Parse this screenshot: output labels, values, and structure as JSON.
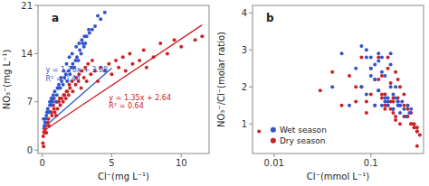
{
  "chart_data": [
    {
      "type": "scatter",
      "title": "a",
      "x_label": "Cl⁻(mg L⁻¹)",
      "y_label": "NO₃⁻(mg L⁻¹)",
      "xlim": [
        -0.3,
        12
      ],
      "ylim": [
        -0.5,
        21
      ],
      "xticks": [
        0,
        5,
        10
      ],
      "yticks": [
        0,
        7,
        14,
        21
      ],
      "series": [
        {
          "type": "scatter",
          "color": "#3355cc",
          "x": [
            0.1,
            0.15,
            0.2,
            0.25,
            0.3,
            0.35,
            0.4,
            0.5,
            0.55,
            0.6,
            0.65,
            0.7,
            0.75,
            0.8,
            0.85,
            0.9,
            1.0,
            1.05,
            1.1,
            1.2,
            1.3,
            1.4,
            1.5,
            1.6,
            1.7,
            1.8,
            1.9,
            2.0,
            2.1,
            2.2,
            2.3,
            2.4,
            2.5,
            2.6,
            2.7,
            2.8,
            2.9,
            3.0,
            3.1,
            3.2,
            3.4,
            3.6,
            3.8,
            4.0,
            4.2,
            4.5,
            0.45,
            0.55,
            0.65,
            1.15,
            1.35,
            1.55,
            1.75,
            1.95,
            2.15,
            2.45,
            2.65,
            2.85,
            3.05,
            3.35
          ],
          "values": [
            4.5,
            3.5,
            4.0,
            4.5,
            5.0,
            5.5,
            6.0,
            5.5,
            6.5,
            7.0,
            6.5,
            7.5,
            7.0,
            8.0,
            7.5,
            8.5,
            7.0,
            8.0,
            9.0,
            9.5,
            9.0,
            10.0,
            9.5,
            10.5,
            11.0,
            10.0,
            11.5,
            11.0,
            12.0,
            12.5,
            12.0,
            13.0,
            13.5,
            13.0,
            14.5,
            14.0,
            15.5,
            15.0,
            15.5,
            16.5,
            17.0,
            17.5,
            18.0,
            19.5,
            19.0,
            20.0,
            5.5,
            7.0,
            7.5,
            9.0,
            10.5,
            11.5,
            12.5,
            13.5,
            14.0,
            15.0,
            15.5,
            16.0,
            16.5,
            17.5
          ]
        },
        {
          "type": "scatter",
          "color": "#cc2222",
          "x": [
            0.05,
            0.1,
            0.15,
            0.2,
            0.3,
            0.4,
            0.5,
            0.6,
            0.7,
            0.8,
            0.9,
            1.0,
            1.1,
            1.2,
            1.3,
            1.4,
            1.5,
            1.6,
            1.7,
            1.8,
            1.9,
            2.0,
            2.2,
            2.4,
            2.6,
            2.8,
            3.0,
            3.2,
            3.5,
            3.8,
            4.0,
            4.5,
            5.0,
            5.5,
            6.0,
            6.5,
            7.0,
            7.5,
            8.0,
            9.0,
            10.0,
            11.0,
            11.5,
            0.25,
            0.45,
            0.65,
            0.85,
            1.05,
            1.25,
            1.55,
            1.75,
            1.95,
            2.15,
            2.45,
            2.65,
            2.85,
            3.1,
            3.3,
            3.6,
            4.2,
            4.8,
            5.3,
            5.8,
            6.3,
            7.3,
            8.5,
            9.5,
            0.08
          ],
          "values": [
            1.0,
            0.5,
            2.5,
            3.0,
            2.5,
            4.0,
            3.5,
            5.5,
            5.0,
            6.5,
            5.5,
            5.0,
            6.0,
            7.0,
            6.5,
            7.5,
            7.0,
            8.0,
            7.5,
            8.5,
            8.0,
            9.0,
            8.5,
            9.5,
            10.0,
            9.0,
            10.5,
            10.0,
            11.0,
            11.5,
            10.0,
            11.5,
            11.0,
            12.0,
            11.5,
            12.5,
            13.0,
            12.0,
            13.5,
            14.0,
            15.0,
            16.0,
            16.5,
            3.5,
            4.5,
            5.5,
            6.0,
            7.0,
            7.5,
            8.0,
            8.5,
            9.5,
            10.0,
            10.5,
            11.0,
            11.5,
            12.0,
            12.5,
            13.0,
            12.0,
            12.5,
            13.0,
            13.5,
            14.0,
            14.5,
            15.5,
            16.0,
            2.0
          ]
        },
        {
          "type": "line",
          "color": "#3355cc",
          "x": [
            0.0,
            5.0
          ],
          "values": [
            3.08,
            11.88
          ]
        },
        {
          "type": "line",
          "color": "#cc2222",
          "x": [
            0.0,
            11.5
          ],
          "values": [
            2.64,
            18.165
          ]
        }
      ],
      "annotations": [
        {
          "text": "y = 1.76x + 3.08\nR² = 0.44",
          "x": 0.25,
          "y": 12.2,
          "color": "#3355cc"
        },
        {
          "text": "y = 1.35x + 2.64\nR² = 0.64",
          "x": 4.8,
          "y": 8.2,
          "color": "#cc2222"
        }
      ]
    },
    {
      "type": "scatter",
      "title": "b",
      "x_label": "Cl⁻(mmol L⁻¹)",
      "y_label": "NO₃⁻/Cl⁻(molar ratio)",
      "log": "x",
      "xlim": [
        0.006,
        0.35
      ],
      "ylim": [
        0.2,
        4.2
      ],
      "xticks": [
        0.01,
        0.1
      ],
      "yticks": [
        1,
        2,
        3,
        4
      ],
      "legend": "lower left",
      "series": [
        {
          "name": "Wet season",
          "type": "scatter",
          "color": "#3355cc",
          "x": [
            0.04,
            0.05,
            0.06,
            0.07,
            0.08,
            0.09,
            0.1,
            0.11,
            0.12,
            0.09,
            0.1,
            0.11,
            0.12,
            0.13,
            0.14,
            0.15,
            0.16,
            0.17,
            0.08,
            0.09,
            0.1,
            0.11,
            0.12,
            0.13,
            0.14,
            0.15,
            0.16,
            0.13,
            0.14,
            0.15,
            0.16,
            0.17,
            0.18,
            0.19,
            0.2,
            0.21,
            0.17,
            0.18,
            0.19,
            0.2,
            0.22,
            0.23,
            0.24,
            0.25,
            0.26
          ],
          "values": [
            2.0,
            2.9,
            1.5,
            2.5,
            3.1,
            2.8,
            2.3,
            2.6,
            2.9,
            3.0,
            2.8,
            1.5,
            2.7,
            2.4,
            1.7,
            1.6,
            2.9,
            1.8,
            2.0,
            1.8,
            2.5,
            2.2,
            1.9,
            1.5,
            2.3,
            1.7,
            2.6,
            2.8,
            1.6,
            1.5,
            2.0,
            1.4,
            1.7,
            1.5,
            1.3,
            1.6,
            1.4,
            2.0,
            1.6,
            1.5,
            1.4,
            1.2,
            1.5,
            1.3,
            1.4
          ]
        },
        {
          "name": "Dry season",
          "type": "scatter",
          "color": "#cc2222",
          "x": [
            0.007,
            0.03,
            0.04,
            0.05,
            0.06,
            0.07,
            0.08,
            0.09,
            0.1,
            0.11,
            0.12,
            0.13,
            0.14,
            0.15,
            0.16,
            0.17,
            0.18,
            0.19,
            0.2,
            0.22,
            0.24,
            0.26,
            0.28,
            0.3,
            0.07,
            0.08,
            0.09,
            0.1,
            0.11,
            0.12,
            0.13,
            0.14,
            0.15,
            0.16,
            0.17,
            0.18,
            0.19,
            0.2,
            0.22,
            0.24,
            0.26,
            0.28,
            0.3,
            0.12,
            0.13,
            0.14,
            0.15,
            0.16,
            0.17,
            0.18,
            0.19,
            0.2,
            0.22,
            0.24,
            0.26,
            0.28,
            0.3,
            0.32,
            0.3
          ],
          "values": [
            0.8,
            1.9,
            2.4,
            1.5,
            2.3,
            2.0,
            2.8,
            1.6,
            2.5,
            2.2,
            2.8,
            2.3,
            1.8,
            1.5,
            2.1,
            1.7,
            2.4,
            1.6,
            2.0,
            1.8,
            1.5,
            1.3,
            1.0,
            0.9,
            1.6,
            2.0,
            1.3,
            1.8,
            1.5,
            2.2,
            1.8,
            1.4,
            2.5,
            1.6,
            1.3,
            1.1,
            1.7,
            1.5,
            1.2,
            1.4,
            1.0,
            0.9,
            0.8,
            1.9,
            1.7,
            1.5,
            2.8,
            1.4,
            1.6,
            1.2,
            2.2,
            1.0,
            1.5,
            1.2,
            1.0,
            0.9,
            0.8,
            0.7,
            0.4
          ]
        }
      ]
    }
  ]
}
